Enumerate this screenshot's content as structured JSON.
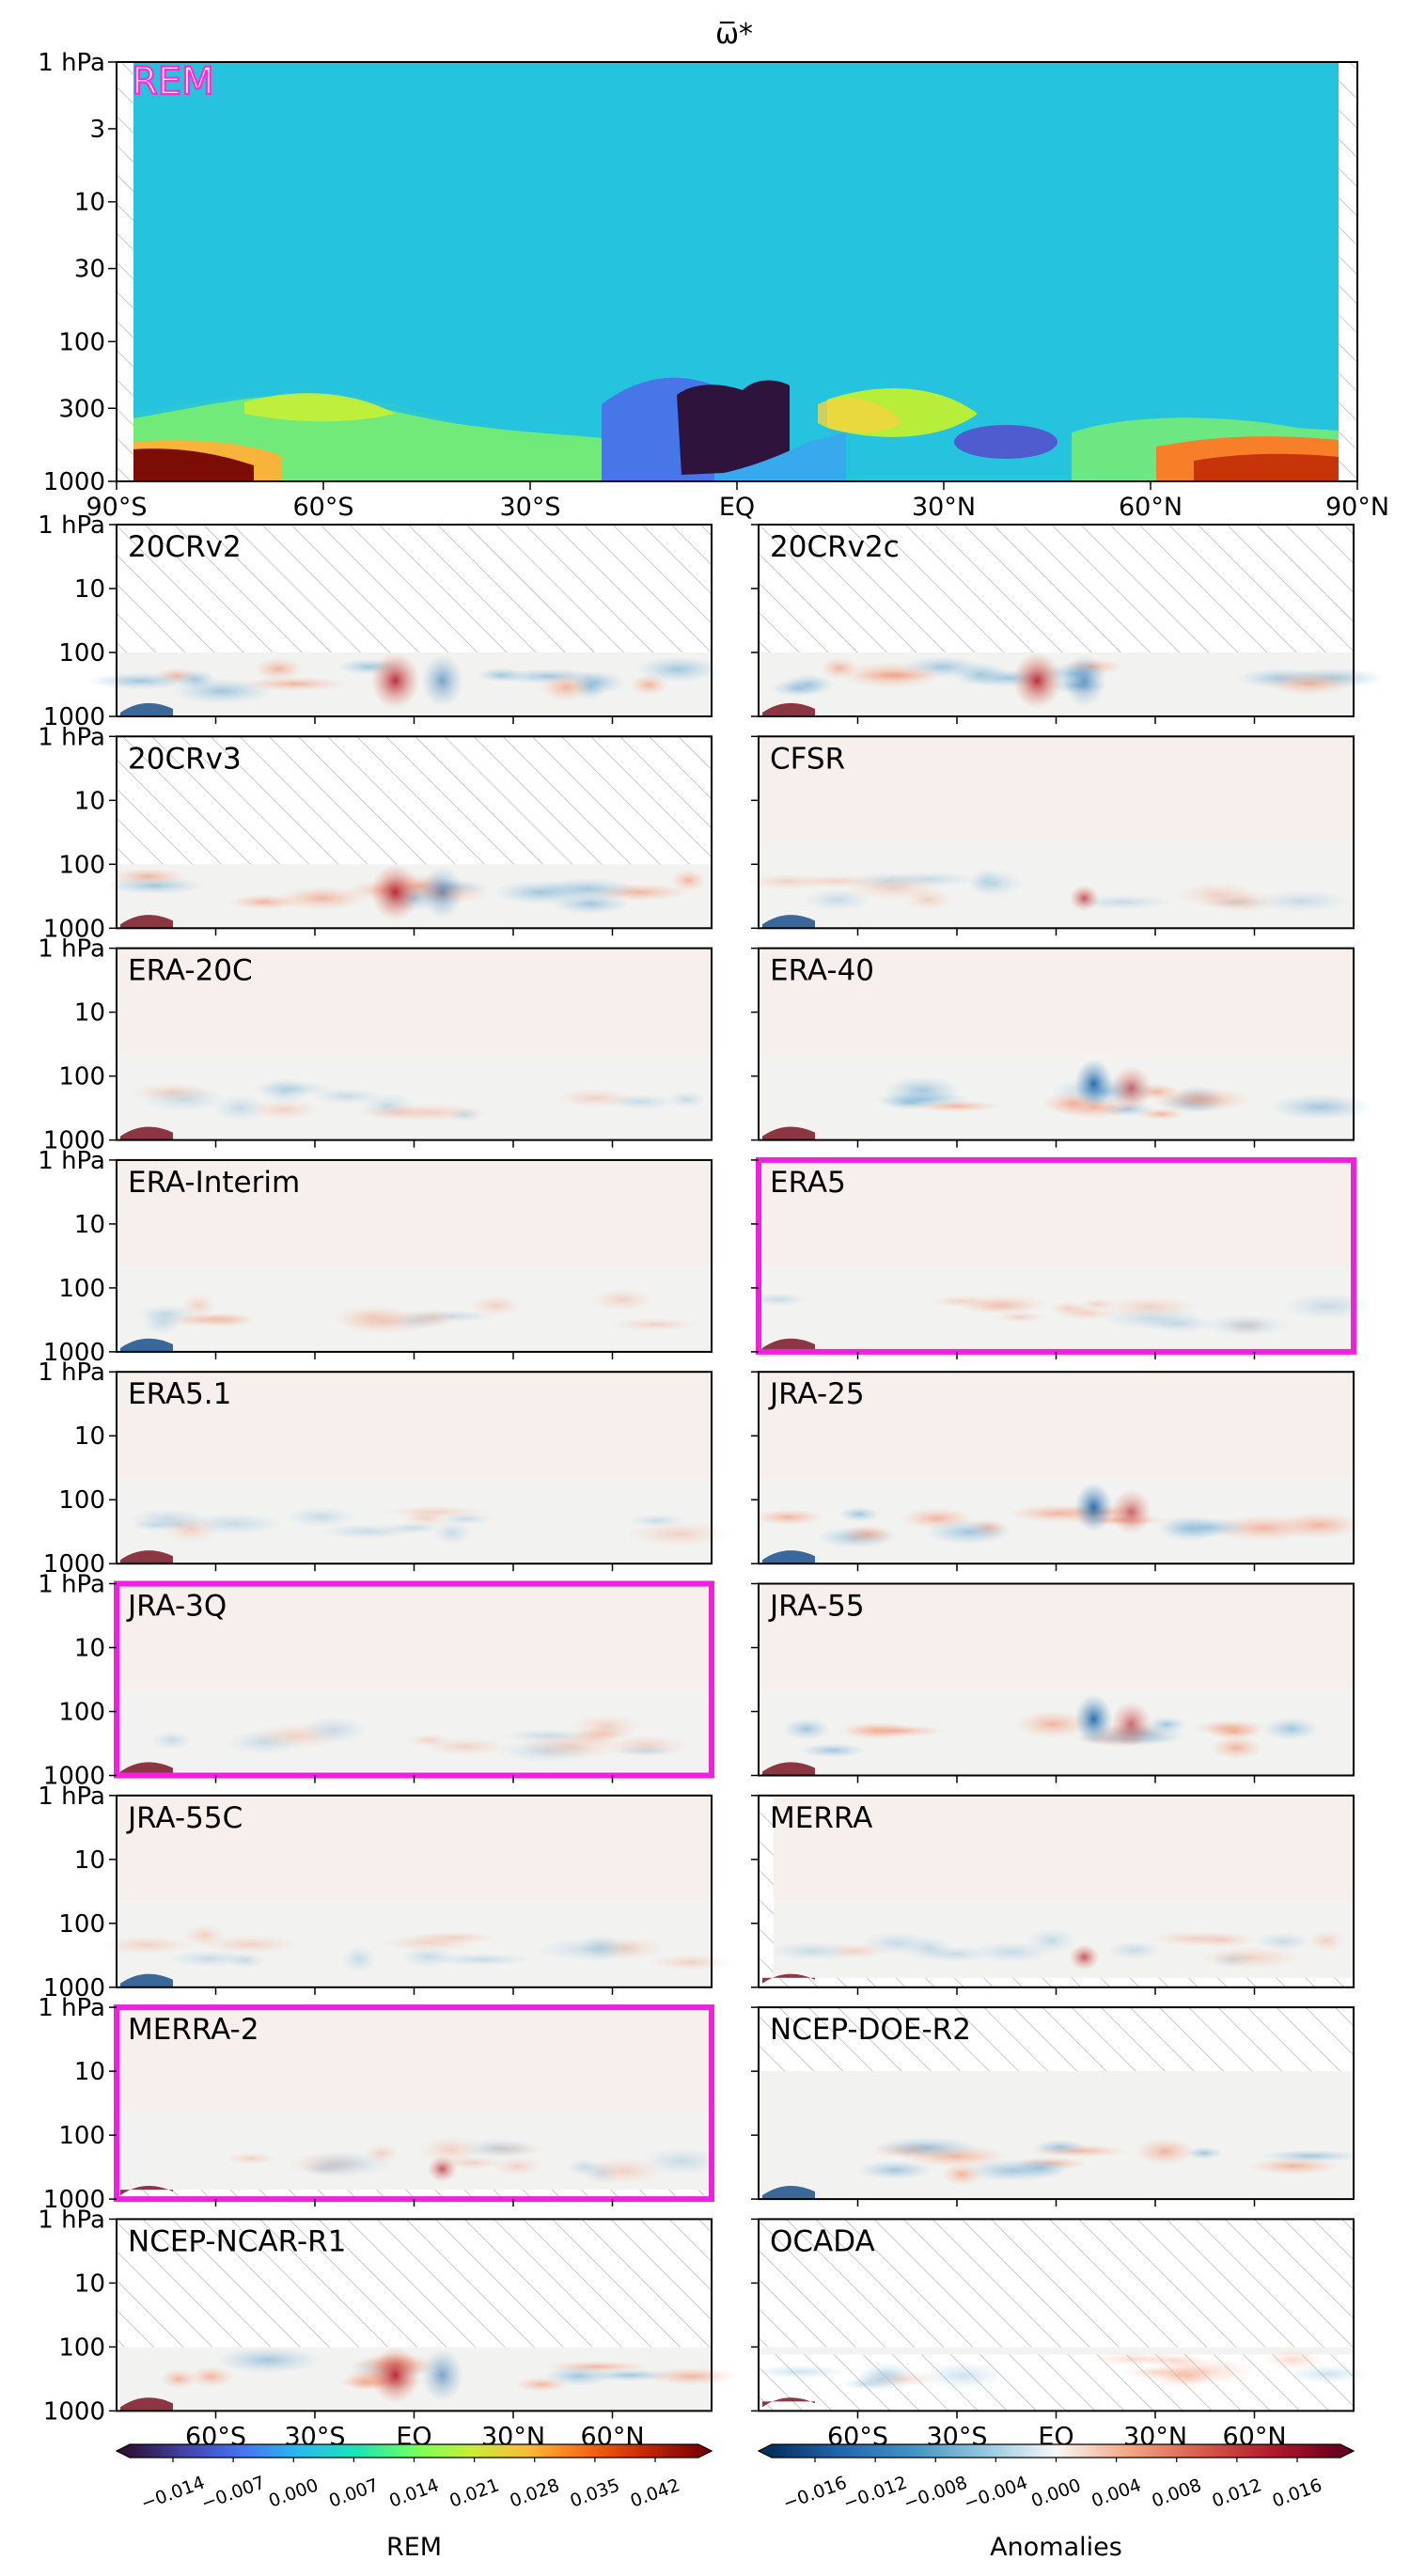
{
  "title": "ω̅*",
  "main_panel": {
    "label": "REM",
    "label_color": "#ff2bd6",
    "y_ticks": [
      "1 hPa",
      "3",
      "10",
      "30",
      "100",
      "300",
      "1000"
    ],
    "x_ticks": [
      "90°S",
      "60°S",
      "30°S",
      "EQ",
      "30°N",
      "60°N",
      "90°N"
    ]
  },
  "small_y_ticks": [
    "1 hPa",
    "10",
    "100",
    "1000"
  ],
  "bottom_x_ticks": [
    "60°S",
    "30°S",
    "EQ",
    "30°N",
    "60°N"
  ],
  "highlight_color": "#ee22dd",
  "panels": [
    {
      "label": "20CRv2",
      "highlight": false,
      "top_level_hPa": 100
    },
    {
      "label": "20CRv2c",
      "highlight": false,
      "top_level_hPa": 100
    },
    {
      "label": "20CRv3",
      "highlight": false,
      "top_level_hPa": 100
    },
    {
      "label": "CFSR",
      "highlight": false,
      "top_level_hPa": 1
    },
    {
      "label": "ERA-20C",
      "highlight": false,
      "top_level_hPa": 1
    },
    {
      "label": "ERA-40",
      "highlight": false,
      "top_level_hPa": 1
    },
    {
      "label": "ERA-Interim",
      "highlight": false,
      "top_level_hPa": 1
    },
    {
      "label": "ERA5",
      "highlight": true,
      "top_level_hPa": 1
    },
    {
      "label": "ERA5.1",
      "highlight": false,
      "top_level_hPa": 1
    },
    {
      "label": "JRA-25",
      "highlight": false,
      "top_level_hPa": 1
    },
    {
      "label": "JRA-3Q",
      "highlight": true,
      "top_level_hPa": 1
    },
    {
      "label": "JRA-55",
      "highlight": false,
      "top_level_hPa": 1
    },
    {
      "label": "JRA-55C",
      "highlight": false,
      "top_level_hPa": 1
    },
    {
      "label": "MERRA",
      "highlight": false,
      "top_level_hPa": 1
    },
    {
      "label": "MERRA-2",
      "highlight": true,
      "top_level_hPa": 1
    },
    {
      "label": "NCEP-DOE-R2",
      "highlight": false,
      "top_level_hPa": 10
    },
    {
      "label": "NCEP-NCAR-R1",
      "highlight": false,
      "top_level_hPa": 100
    },
    {
      "label": "OCADA",
      "highlight": false,
      "top_level_hPa": 100
    }
  ],
  "colorbars": [
    {
      "label": "REM",
      "colormap": "turbo",
      "ticks": [
        "−0.014",
        "−0.007",
        "0.000",
        "0.007",
        "0.014",
        "0.021",
        "0.028",
        "0.035",
        "0.042"
      ]
    },
    {
      "label": "Anomalies",
      "colormap": "RdBu_r",
      "ticks": [
        "−0.016",
        "−0.012",
        "−0.008",
        "−0.004",
        "0.000",
        "0.004",
        "0.008",
        "0.012",
        "0.016"
      ]
    }
  ],
  "chart_data": {
    "type": "heatmap",
    "title": "ω̅*",
    "xlabel": "",
    "ylabel": "",
    "x_ticks": [
      "90°S",
      "60°S",
      "30°S",
      "EQ",
      "30°N",
      "60°N",
      "90°N"
    ],
    "y_ticks_hPa": [
      1,
      3,
      10,
      30,
      100,
      300,
      1000
    ],
    "y_scale": "log",
    "reanalyses": [
      "20CRv2",
      "20CRv2c",
      "20CRv3",
      "CFSR",
      "ERA-20C",
      "ERA-40",
      "ERA-Interim",
      "ERA5",
      "ERA5.1",
      "JRA-25",
      "JRA-3Q",
      "JRA-55",
      "JRA-55C",
      "MERRA",
      "MERRA-2",
      "NCEP-DOE-R2",
      "NCEP-NCAR-R1",
      "OCADA"
    ],
    "highlighted": [
      "ERA5",
      "JRA-3Q",
      "MERRA-2"
    ],
    "rem_colorbar_range": [
      -0.014,
      0.042
    ],
    "anomaly_colorbar_range": [
      -0.016,
      0.016
    ]
  }
}
